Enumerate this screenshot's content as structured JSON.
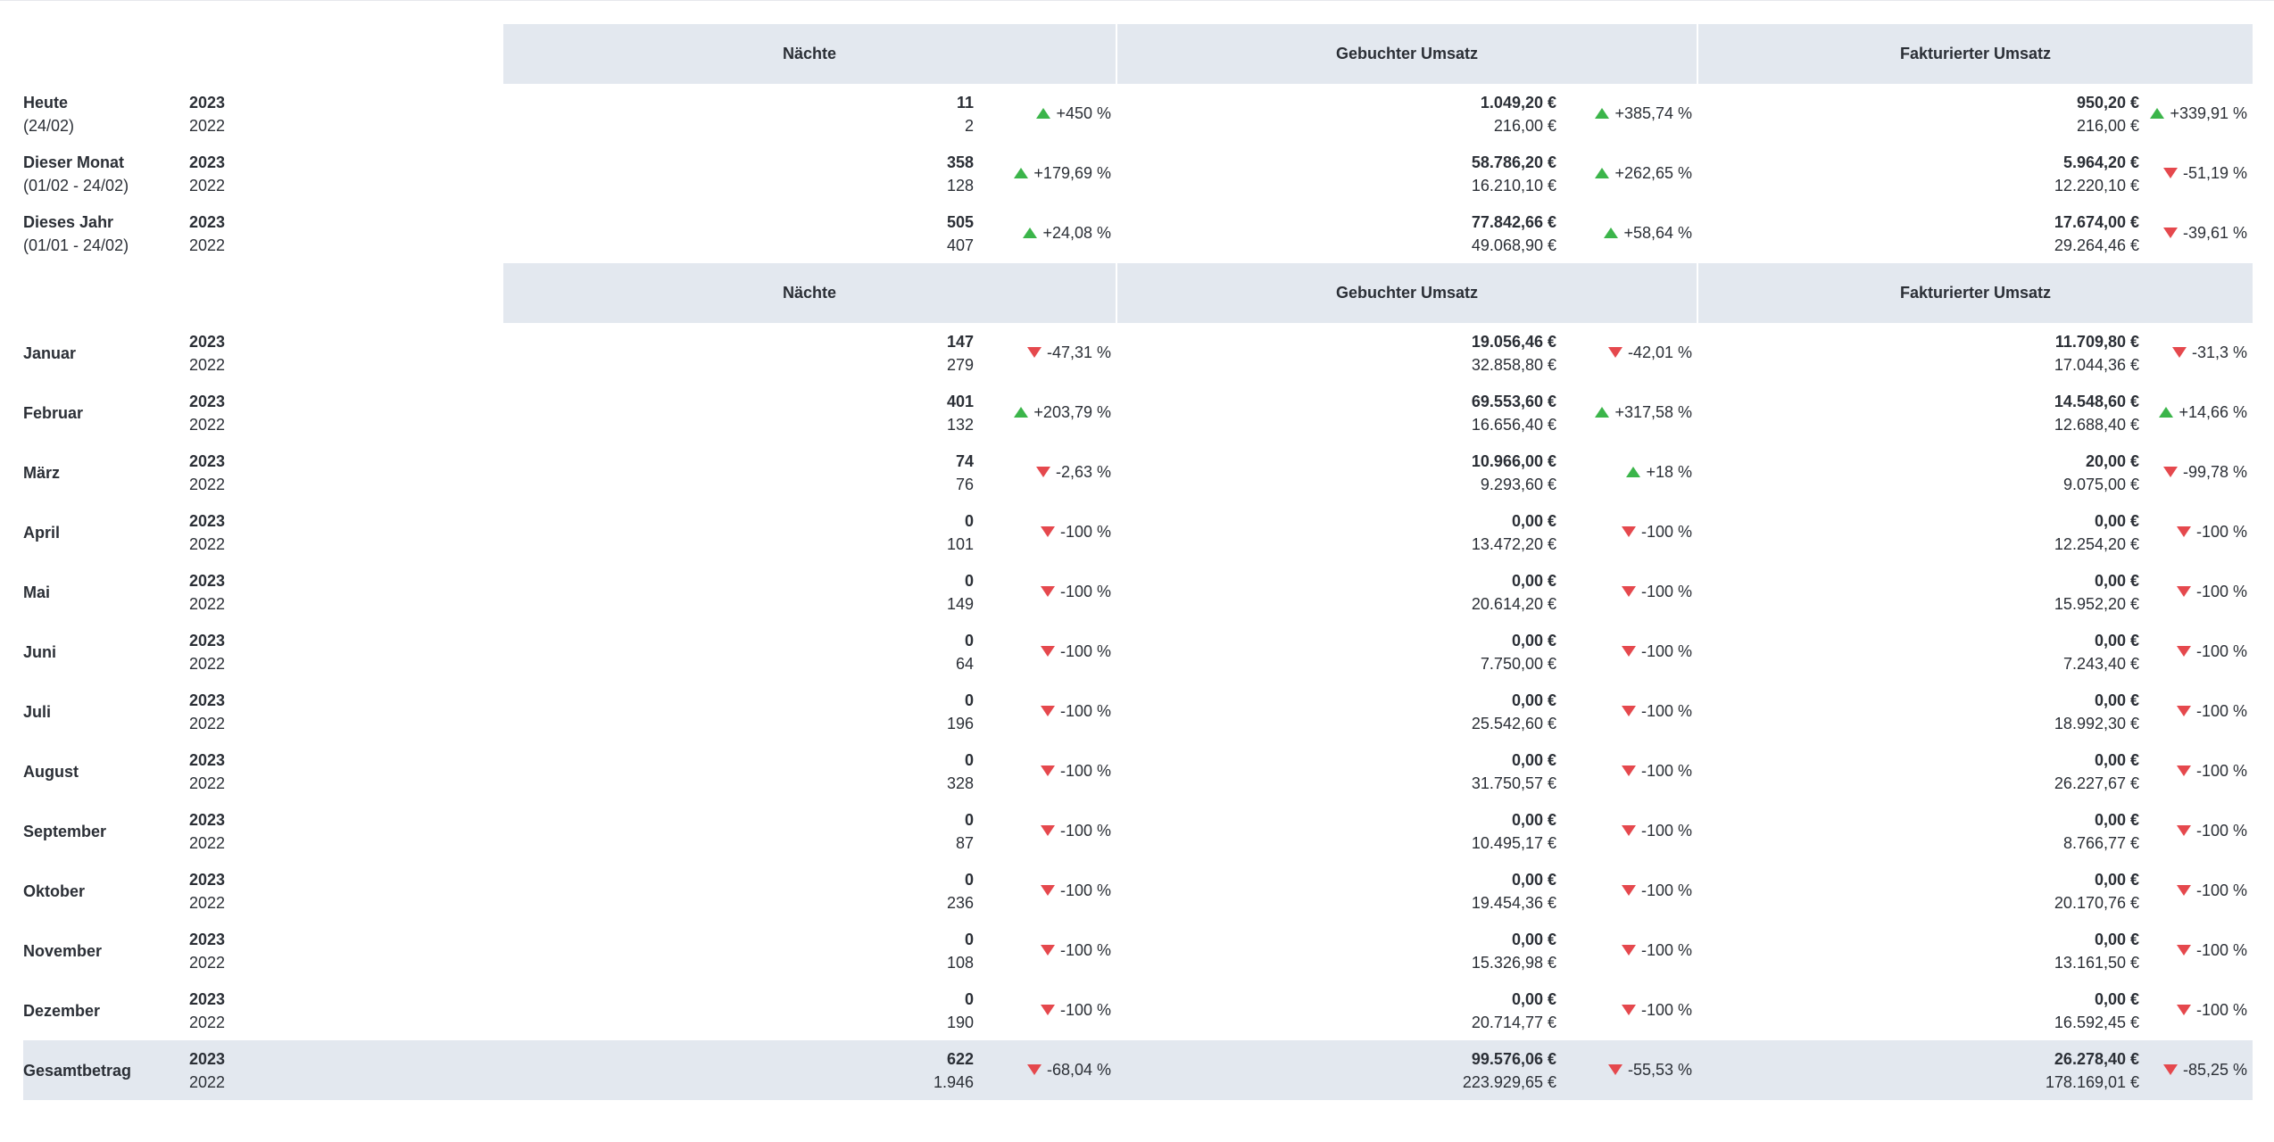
{
  "colors": {
    "header_bg": "#e3e8ef",
    "up": "#3bb54a",
    "down": "#e5484d"
  },
  "headers": {
    "nights": "Nächte",
    "booked": "Gebuchter Umsatz",
    "invoiced": "Fakturierter Umsatz"
  },
  "summary_rows": [
    {
      "label": "Heute",
      "sublabel": "(24/02)",
      "year_cur": "2023",
      "year_prev": "2022",
      "nights": {
        "cur": "11",
        "prev": "2",
        "change": "+450 %",
        "dir": "up"
      },
      "booked": {
        "cur": "1.049,20 €",
        "prev": "216,00 €",
        "change": "+385,74 %",
        "dir": "up"
      },
      "invoiced": {
        "cur": "950,20 €",
        "prev": "216,00 €",
        "change": "+339,91 %",
        "dir": "up"
      }
    },
    {
      "label": "Dieser Monat",
      "sublabel": "(01/02 - 24/02)",
      "year_cur": "2023",
      "year_prev": "2022",
      "nights": {
        "cur": "358",
        "prev": "128",
        "change": "+179,69 %",
        "dir": "up"
      },
      "booked": {
        "cur": "58.786,20 €",
        "prev": "16.210,10 €",
        "change": "+262,65 %",
        "dir": "up"
      },
      "invoiced": {
        "cur": "5.964,20 €",
        "prev": "12.220,10 €",
        "change": "-51,19 %",
        "dir": "down"
      }
    },
    {
      "label": "Dieses Jahr",
      "sublabel": "(01/01 - 24/02)",
      "year_cur": "2023",
      "year_prev": "2022",
      "nights": {
        "cur": "505",
        "prev": "407",
        "change": "+24,08 %",
        "dir": "up"
      },
      "booked": {
        "cur": "77.842,66 €",
        "prev": "49.068,90 €",
        "change": "+58,64 %",
        "dir": "up"
      },
      "invoiced": {
        "cur": "17.674,00 €",
        "prev": "29.264,46 €",
        "change": "-39,61 %",
        "dir": "down"
      }
    }
  ],
  "month_rows": [
    {
      "label": "Januar",
      "year_cur": "2023",
      "year_prev": "2022",
      "nights": {
        "cur": "147",
        "prev": "279",
        "change": "-47,31 %",
        "dir": "down"
      },
      "booked": {
        "cur": "19.056,46 €",
        "prev": "32.858,80 €",
        "change": "-42,01 %",
        "dir": "down"
      },
      "invoiced": {
        "cur": "11.709,80 €",
        "prev": "17.044,36 €",
        "change": "-31,3 %",
        "dir": "down"
      }
    },
    {
      "label": "Februar",
      "year_cur": "2023",
      "year_prev": "2022",
      "nights": {
        "cur": "401",
        "prev": "132",
        "change": "+203,79 %",
        "dir": "up"
      },
      "booked": {
        "cur": "69.553,60 €",
        "prev": "16.656,40 €",
        "change": "+317,58 %",
        "dir": "up"
      },
      "invoiced": {
        "cur": "14.548,60 €",
        "prev": "12.688,40 €",
        "change": "+14,66 %",
        "dir": "up"
      }
    },
    {
      "label": "März",
      "year_cur": "2023",
      "year_prev": "2022",
      "nights": {
        "cur": "74",
        "prev": "76",
        "change": "-2,63 %",
        "dir": "down"
      },
      "booked": {
        "cur": "10.966,00 €",
        "prev": "9.293,60 €",
        "change": "+18 %",
        "dir": "up"
      },
      "invoiced": {
        "cur": "20,00 €",
        "prev": "9.075,00 €",
        "change": "-99,78 %",
        "dir": "down"
      }
    },
    {
      "label": "April",
      "year_cur": "2023",
      "year_prev": "2022",
      "nights": {
        "cur": "0",
        "prev": "101",
        "change": "-100 %",
        "dir": "down"
      },
      "booked": {
        "cur": "0,00 €",
        "prev": "13.472,20 €",
        "change": "-100 %",
        "dir": "down"
      },
      "invoiced": {
        "cur": "0,00 €",
        "prev": "12.254,20 €",
        "change": "-100 %",
        "dir": "down"
      }
    },
    {
      "label": "Mai",
      "year_cur": "2023",
      "year_prev": "2022",
      "nights": {
        "cur": "0",
        "prev": "149",
        "change": "-100 %",
        "dir": "down"
      },
      "booked": {
        "cur": "0,00 €",
        "prev": "20.614,20 €",
        "change": "-100 %",
        "dir": "down"
      },
      "invoiced": {
        "cur": "0,00 €",
        "prev": "15.952,20 €",
        "change": "-100 %",
        "dir": "down"
      }
    },
    {
      "label": "Juni",
      "year_cur": "2023",
      "year_prev": "2022",
      "nights": {
        "cur": "0",
        "prev": "64",
        "change": "-100 %",
        "dir": "down"
      },
      "booked": {
        "cur": "0,00 €",
        "prev": "7.750,00 €",
        "change": "-100 %",
        "dir": "down"
      },
      "invoiced": {
        "cur": "0,00 €",
        "prev": "7.243,40 €",
        "change": "-100 %",
        "dir": "down"
      }
    },
    {
      "label": "Juli",
      "year_cur": "2023",
      "year_prev": "2022",
      "nights": {
        "cur": "0",
        "prev": "196",
        "change": "-100 %",
        "dir": "down"
      },
      "booked": {
        "cur": "0,00 €",
        "prev": "25.542,60 €",
        "change": "-100 %",
        "dir": "down"
      },
      "invoiced": {
        "cur": "0,00 €",
        "prev": "18.992,30 €",
        "change": "-100 %",
        "dir": "down"
      }
    },
    {
      "label": "August",
      "year_cur": "2023",
      "year_prev": "2022",
      "nights": {
        "cur": "0",
        "prev": "328",
        "change": "-100 %",
        "dir": "down"
      },
      "booked": {
        "cur": "0,00 €",
        "prev": "31.750,57 €",
        "change": "-100 %",
        "dir": "down"
      },
      "invoiced": {
        "cur": "0,00 €",
        "prev": "26.227,67 €",
        "change": "-100 %",
        "dir": "down"
      }
    },
    {
      "label": "September",
      "year_cur": "2023",
      "year_prev": "2022",
      "nights": {
        "cur": "0",
        "prev": "87",
        "change": "-100 %",
        "dir": "down"
      },
      "booked": {
        "cur": "0,00 €",
        "prev": "10.495,17 €",
        "change": "-100 %",
        "dir": "down"
      },
      "invoiced": {
        "cur": "0,00 €",
        "prev": "8.766,77 €",
        "change": "-100 %",
        "dir": "down"
      }
    },
    {
      "label": "Oktober",
      "year_cur": "2023",
      "year_prev": "2022",
      "nights": {
        "cur": "0",
        "prev": "236",
        "change": "-100 %",
        "dir": "down"
      },
      "booked": {
        "cur": "0,00 €",
        "prev": "19.454,36 €",
        "change": "-100 %",
        "dir": "down"
      },
      "invoiced": {
        "cur": "0,00 €",
        "prev": "20.170,76 €",
        "change": "-100 %",
        "dir": "down"
      }
    },
    {
      "label": "November",
      "year_cur": "2023",
      "year_prev": "2022",
      "nights": {
        "cur": "0",
        "prev": "108",
        "change": "-100 %",
        "dir": "down"
      },
      "booked": {
        "cur": "0,00 €",
        "prev": "15.326,98 €",
        "change": "-100 %",
        "dir": "down"
      },
      "invoiced": {
        "cur": "0,00 €",
        "prev": "13.161,50 €",
        "change": "-100 %",
        "dir": "down"
      }
    },
    {
      "label": "Dezember",
      "year_cur": "2023",
      "year_prev": "2022",
      "nights": {
        "cur": "0",
        "prev": "190",
        "change": "-100 %",
        "dir": "down"
      },
      "booked": {
        "cur": "0,00 €",
        "prev": "20.714,77 €",
        "change": "-100 %",
        "dir": "down"
      },
      "invoiced": {
        "cur": "0,00 €",
        "prev": "16.592,45 €",
        "change": "-100 %",
        "dir": "down"
      }
    }
  ],
  "total_row": {
    "label": "Gesamtbetrag",
    "year_cur": "2023",
    "year_prev": "2022",
    "nights": {
      "cur": "622",
      "prev": "1.946",
      "change": "-68,04 %",
      "dir": "down"
    },
    "booked": {
      "cur": "99.576,06 €",
      "prev": "223.929,65 €",
      "change": "-55,53 %",
      "dir": "down"
    },
    "invoiced": {
      "cur": "26.278,40 €",
      "prev": "178.169,01 €",
      "change": "-85,25 %",
      "dir": "down"
    }
  }
}
